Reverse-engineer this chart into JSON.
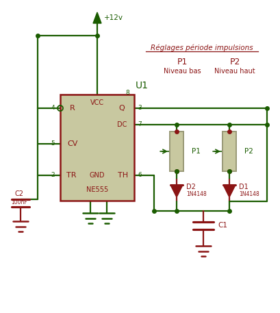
{
  "bg_color": "#ffffff",
  "wire_color": "#1a5c00",
  "red_color": "#8b1414",
  "comp_fill": "#c8c8a0",
  "comp_border": "#8b1414",
  "label_reglages": "Réglages période impulsions",
  "label_p1_top": "P1",
  "label_p2_top": "P2",
  "label_niveau_bas": "Niveau bas",
  "label_niveau_haut": "Niveau haut",
  "label_u1": "U1",
  "label_ne555": "NE555",
  "label_c1": "C1",
  "label_c2": "C2",
  "label_c2_val": "100nF",
  "label_d1": "D1",
  "label_d2": "D2",
  "label_1n4148": "1N4148",
  "label_vcc": "+12v",
  "label_p1": "P1",
  "label_p2": "P2",
  "pin_r": "R",
  "pin_vcc": "VCC",
  "pin_q": "Q",
  "pin_dc": "DC",
  "pin_cv": "CV",
  "pin_tr": "TR",
  "pin_gnd": "GND",
  "pin_th": "TH",
  "pin4": "4",
  "pin5": "5",
  "pin2": "2",
  "pin3": "3",
  "pin7": "7",
  "pin6": "6",
  "pin8": "8"
}
